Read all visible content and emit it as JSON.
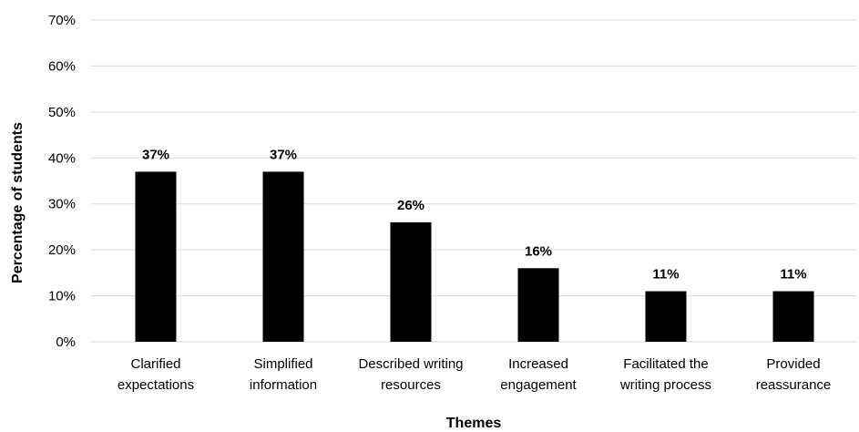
{
  "chart_data": {
    "type": "bar",
    "categories": [
      [
        "Clarified",
        "expectations"
      ],
      [
        "Simplified",
        "information"
      ],
      [
        "Described writing",
        "resources"
      ],
      [
        "Increased",
        "engagement"
      ],
      [
        "Facilitated the",
        "writing process"
      ],
      [
        "Provided",
        "reassurance"
      ]
    ],
    "values": [
      37,
      37,
      26,
      16,
      11,
      11
    ],
    "data_labels": [
      "37%",
      "37%",
      "26%",
      "16%",
      "11%",
      "11%"
    ],
    "title": "",
    "xlabel": "Themes",
    "ylabel": "Percentage of students",
    "ylim": [
      0,
      70
    ],
    "yticks": [
      "0%",
      "10%",
      "20%",
      "30%",
      "40%",
      "50%",
      "60%",
      "70%"
    ],
    "grid": "horizontal",
    "legend": "none",
    "colors": {
      "bar": "#000000",
      "grid": "#d9d9d9",
      "text": "#000000"
    }
  }
}
